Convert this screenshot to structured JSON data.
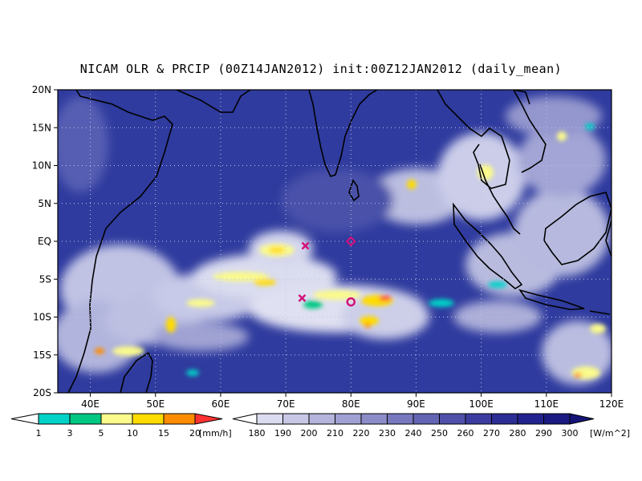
{
  "title": "NICAM OLR & PRCIP (00Z14JAN2012) init:00Z12JAN2012 (daily_mean)",
  "map": {
    "lon_range": [
      35,
      120
    ],
    "lat_range": [
      -20,
      20
    ],
    "lat_ticks": [
      {
        "value": 20,
        "label": "20N"
      },
      {
        "value": 15,
        "label": "15N"
      },
      {
        "value": 10,
        "label": "10N"
      },
      {
        "value": 5,
        "label": "5N"
      },
      {
        "value": 0,
        "label": "EQ"
      },
      {
        "value": -5,
        "label": "5S"
      },
      {
        "value": -10,
        "label": "10S"
      },
      {
        "value": -15,
        "label": "15S"
      },
      {
        "value": -20,
        "label": "20S"
      }
    ],
    "lon_ticks": [
      {
        "value": 40,
        "label": "40E"
      },
      {
        "value": 50,
        "label": "50E"
      },
      {
        "value": 60,
        "label": "60E"
      },
      {
        "value": 70,
        "label": "70E"
      },
      {
        "value": 80,
        "label": "80E"
      },
      {
        "value": 90,
        "label": "90E"
      },
      {
        "value": 100,
        "label": "100E"
      },
      {
        "value": 110,
        "label": "110E"
      },
      {
        "value": 120,
        "label": "120E"
      }
    ],
    "grid": "dotted",
    "background_color": "#2f3b9e",
    "markers": [
      {
        "type": "x",
        "lon": 73,
        "lat": -0.6,
        "color": "#d2127a"
      },
      {
        "type": "diamond",
        "lon": 80,
        "lat": 0,
        "color": "#d2127a"
      },
      {
        "type": "x",
        "lon": 72.5,
        "lat": -7.5,
        "color": "#d2127a"
      },
      {
        "type": "circle",
        "lon": 80,
        "lat": -8,
        "color": "#d2127a"
      }
    ]
  },
  "precip_colorbar": {
    "levels": [
      "1",
      "3",
      "5",
      "10",
      "15",
      "20"
    ],
    "colors": [
      "#00d2c8",
      "#00c882",
      "#fafa8c",
      "#ffdc00",
      "#ff8c00",
      "#ff3232"
    ],
    "unit": "[mm/h]"
  },
  "olr_colorbar": {
    "levels": [
      "180",
      "190",
      "200",
      "210",
      "220",
      "230",
      "240",
      "250",
      "260",
      "270",
      "280",
      "290",
      "300"
    ],
    "colors": [
      "#eeeef8",
      "#dcdcf0",
      "#c8c8e6",
      "#b4b4dc",
      "#a0a0d2",
      "#8c8cc8",
      "#7878be",
      "#6464b4",
      "#5050aa",
      "#3c3ca0",
      "#2d2d96",
      "#232390",
      "#1a1a82",
      "#141478"
    ],
    "unit": "[W/m^2]"
  }
}
